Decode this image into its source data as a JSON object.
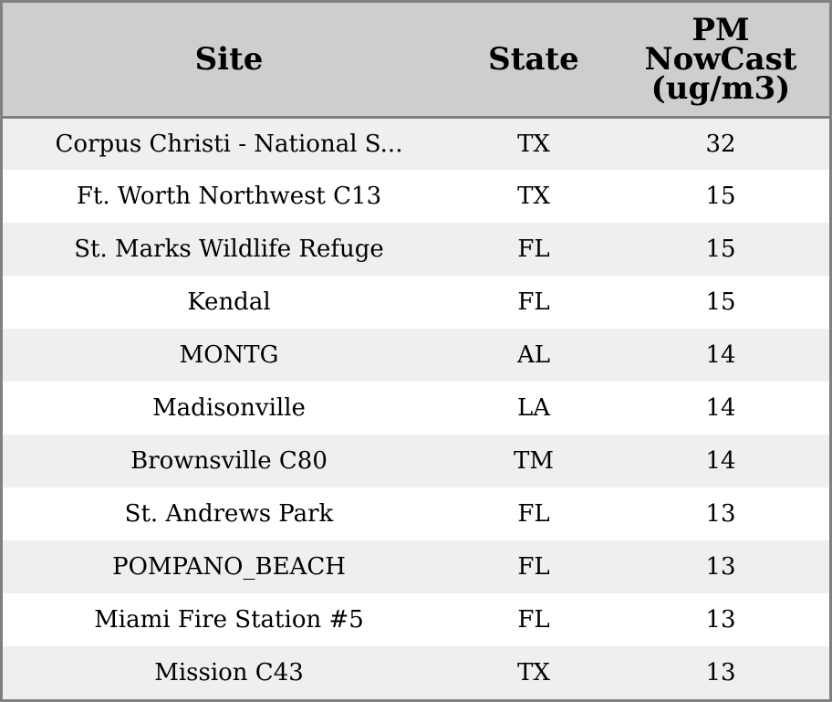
{
  "chart_data": {
    "type": "table",
    "columns": [
      "Site",
      "State",
      [
        "PM",
        "NowCast",
        "(ug/m3)"
      ]
    ],
    "rows": [
      [
        "Corpus Christi - National S...",
        "TX",
        "32"
      ],
      [
        "Ft. Worth Northwest C13",
        "TX",
        "15"
      ],
      [
        "St. Marks Wildlife Refuge",
        "FL",
        "15"
      ],
      [
        "Kendal",
        "FL",
        "15"
      ],
      [
        "MONTG",
        "AL",
        "14"
      ],
      [
        "Madisonville",
        "LA",
        "14"
      ],
      [
        "Brownsville C80",
        "TM",
        "14"
      ],
      [
        "St. Andrews Park",
        "FL",
        "13"
      ],
      [
        "POMPANO_BEACH",
        "FL",
        "13"
      ],
      [
        "Miami Fire Station #5",
        "FL",
        "13"
      ],
      [
        "Mission C43",
        "TX",
        "13"
      ]
    ],
    "colors": {
      "header_background": "#cecece",
      "row_odd": "#efefef",
      "row_even": "#ffffff",
      "border": "#808080"
    }
  }
}
